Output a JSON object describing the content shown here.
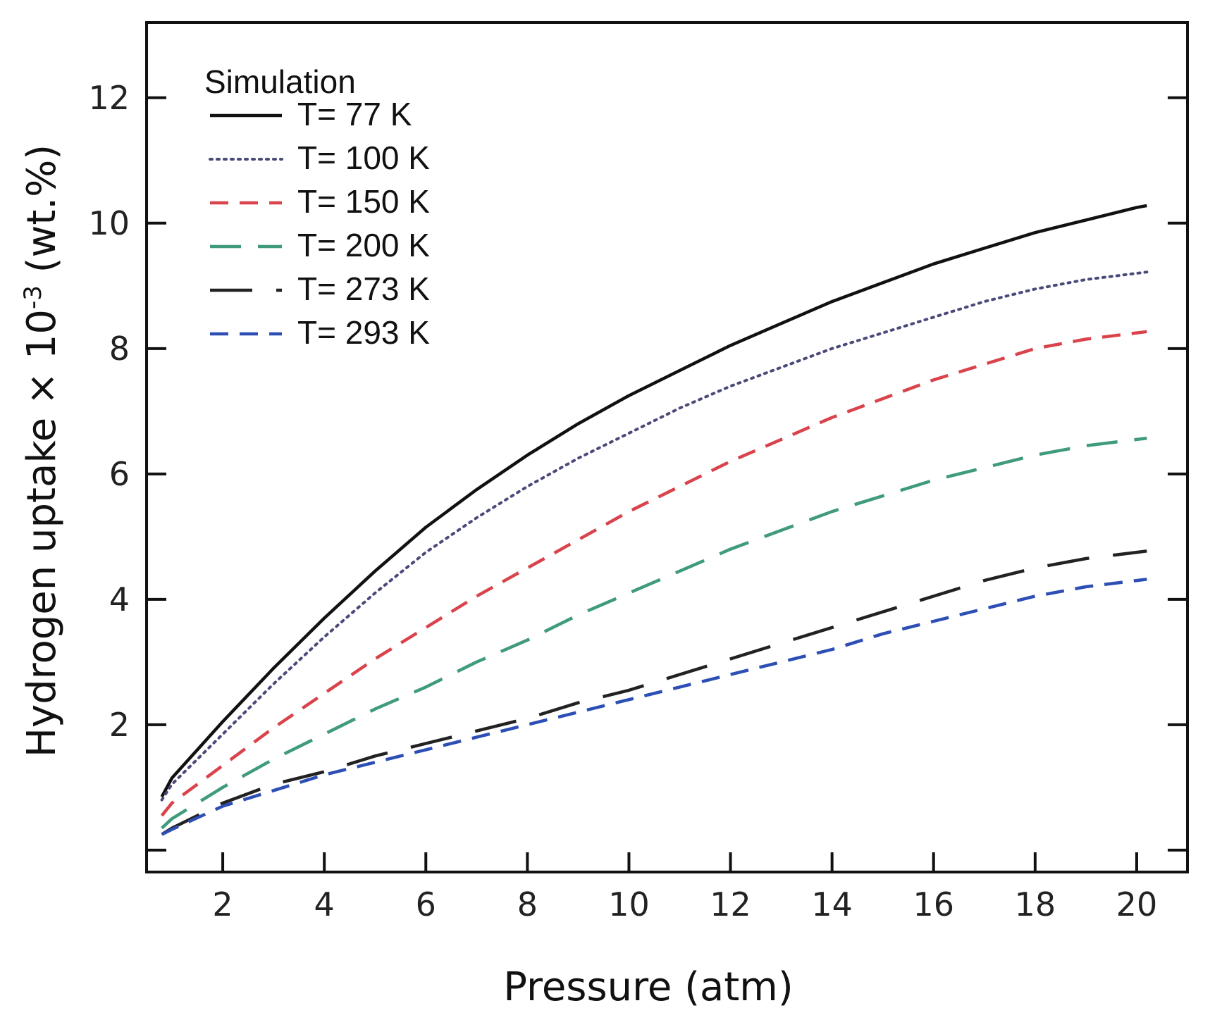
{
  "chart_data": {
    "type": "line",
    "title": "",
    "xlabel": "Pressure (atm)",
    "ylabel_parts": {
      "prefix": "Hydrogen uptake × 10",
      "exponent": "-3",
      "suffix": " (wt.%)"
    },
    "xlim": [
      0.5,
      21
    ],
    "ylim": [
      -0.35,
      13.2
    ],
    "xticks": [
      2,
      4,
      6,
      8,
      10,
      12,
      14,
      16,
      18,
      20
    ],
    "yticks": [
      2,
      4,
      6,
      8,
      10,
      12
    ],
    "xtick_labels": [
      "2",
      "4",
      "6",
      "8",
      "10",
      "12",
      "14",
      "16",
      "18",
      "20"
    ],
    "ytick_labels": [
      "2",
      "4",
      "6",
      "8",
      "10",
      "12"
    ],
    "legend_title": "Simulation",
    "legend_position": "top-left",
    "x": [
      0.8,
      1,
      2,
      3,
      4,
      5,
      6,
      7,
      8,
      9,
      10,
      11,
      12,
      13,
      14,
      15,
      16,
      17,
      18,
      19,
      20,
      20.2
    ],
    "series": [
      {
        "name": "T= 77 K",
        "color": "#111111",
        "style": "solid",
        "values": [
          0.85,
          1.15,
          2.05,
          2.9,
          3.7,
          4.45,
          5.15,
          5.75,
          6.3,
          6.8,
          7.25,
          7.65,
          8.05,
          8.4,
          8.75,
          9.05,
          9.35,
          9.6,
          9.85,
          10.05,
          10.25,
          10.28
        ]
      },
      {
        "name": "T= 100 K",
        "color": "#4a4a7a",
        "style": "dotted",
        "values": [
          0.8,
          1.05,
          1.85,
          2.65,
          3.4,
          4.1,
          4.75,
          5.3,
          5.8,
          6.25,
          6.65,
          7.05,
          7.4,
          7.7,
          8.0,
          8.25,
          8.5,
          8.75,
          8.95,
          9.1,
          9.2,
          9.22
        ]
      },
      {
        "name": "T= 150 K",
        "color": "#d9434b",
        "style": "dash",
        "values": [
          0.55,
          0.75,
          1.35,
          1.95,
          2.5,
          3.05,
          3.55,
          4.05,
          4.5,
          4.95,
          5.4,
          5.8,
          6.2,
          6.55,
          6.9,
          7.2,
          7.5,
          7.75,
          8.0,
          8.15,
          8.25,
          8.27
        ]
      },
      {
        "name": "T= 200 K",
        "color": "#3f9a7e",
        "style": "longdash",
        "values": [
          0.35,
          0.5,
          1.0,
          1.45,
          1.85,
          2.25,
          2.6,
          3.0,
          3.35,
          3.75,
          4.1,
          4.45,
          4.8,
          5.1,
          5.4,
          5.65,
          5.9,
          6.1,
          6.3,
          6.45,
          6.55,
          6.57
        ]
      },
      {
        "name": "T= 273 K",
        "color": "#222222",
        "style": "longerdash",
        "values": [
          0.25,
          0.35,
          0.75,
          1.05,
          1.25,
          1.5,
          1.7,
          1.9,
          2.1,
          2.35,
          2.55,
          2.8,
          3.05,
          3.3,
          3.55,
          3.8,
          4.05,
          4.3,
          4.5,
          4.65,
          4.75,
          4.77
        ]
      },
      {
        "name": "T= 293 K",
        "color": "#2d4fb5",
        "style": "dash",
        "values": [
          0.25,
          0.33,
          0.7,
          0.95,
          1.2,
          1.4,
          1.6,
          1.8,
          2.0,
          2.2,
          2.4,
          2.6,
          2.8,
          3.0,
          3.2,
          3.45,
          3.65,
          3.85,
          4.05,
          4.2,
          4.3,
          4.32
        ]
      }
    ]
  }
}
